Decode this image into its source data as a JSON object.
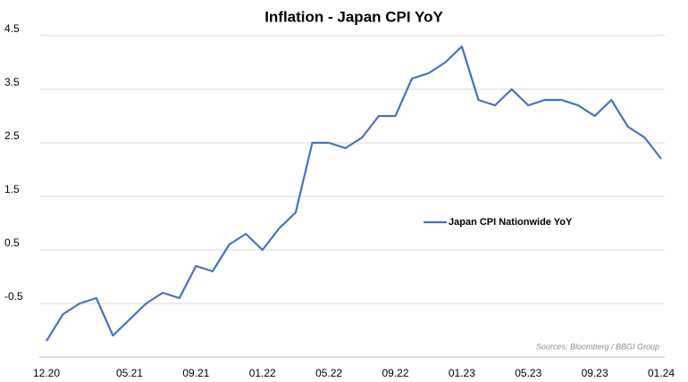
{
  "chart_data": {
    "type": "line",
    "title": "Inflation - Japan CPI YoY",
    "categories": [
      "12.20",
      null,
      null,
      null,
      null,
      "05.21",
      null,
      null,
      null,
      "09.21",
      null,
      null,
      null,
      "01.22",
      null,
      null,
      null,
      "05.22",
      null,
      null,
      null,
      "09.22",
      null,
      null,
      null,
      "01.23",
      null,
      null,
      null,
      "05.23",
      null,
      null,
      null,
      "09.23",
      null,
      null,
      null,
      "01.24"
    ],
    "series": [
      {
        "name": "Japan CPI Nationwide YoY",
        "color": "#4472c4",
        "values": [
          -1.2,
          -0.7,
          -0.5,
          -0.4,
          -1.1,
          -0.8,
          -0.5,
          -0.3,
          -0.4,
          0.2,
          0.1,
          0.6,
          0.8,
          0.5,
          0.9,
          1.2,
          2.5,
          2.5,
          2.4,
          2.6,
          3.0,
          3.0,
          3.7,
          3.8,
          4.0,
          4.3,
          3.3,
          3.2,
          3.5,
          3.2,
          3.3,
          3.3,
          3.2,
          3.0,
          3.3,
          2.8,
          2.6,
          2.2
        ]
      }
    ],
    "ylim": [
      -1.5,
      4.5
    ],
    "yticks": [
      -0.5,
      0.5,
      1.5,
      2.5,
      3.5,
      4.5
    ],
    "grid": true,
    "legend": "right",
    "annotations": [
      "Sources: Bloomberg / BBGI Group"
    ]
  }
}
